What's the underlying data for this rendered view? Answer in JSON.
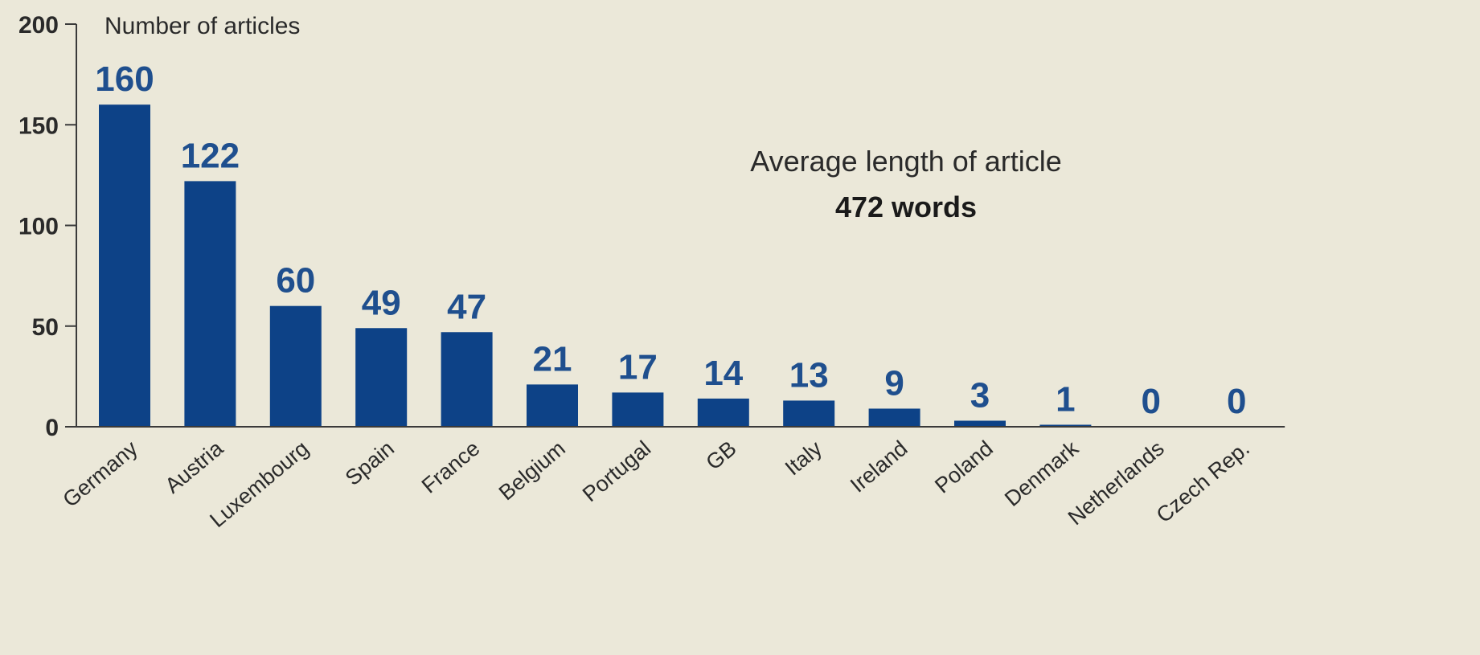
{
  "chart_data": {
    "type": "bar",
    "ylabel": "Number of articles",
    "xlabel": "",
    "ylim": [
      0,
      200
    ],
    "yticks": [
      0,
      50,
      100,
      150,
      200
    ],
    "categories": [
      "Germany",
      "Austria",
      "Luxembourg",
      "Spain",
      "France",
      "Belgium",
      "Portugal",
      "GB",
      "Italy",
      "Ireland",
      "Poland",
      "Denmark",
      "Netherlands",
      "Czech Rep."
    ],
    "values": [
      160,
      122,
      60,
      49,
      47,
      21,
      17,
      14,
      13,
      9,
      3,
      1,
      0,
      0
    ],
    "annotation": {
      "title": "Average length of article",
      "value": "472 words"
    },
    "colors": {
      "bar": "#0d4287",
      "value_label": "#1f4f8e",
      "axis": "#3a3a3a",
      "background": "#ebe8d9"
    },
    "grid": false,
    "legend": "none"
  }
}
